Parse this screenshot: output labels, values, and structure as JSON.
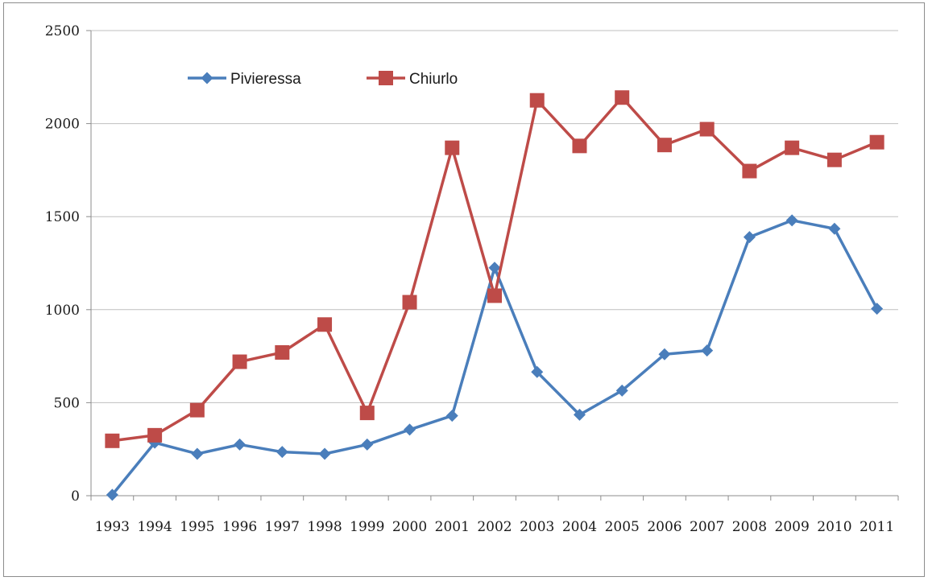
{
  "chart_data": {
    "type": "line",
    "title": "",
    "xlabel": "",
    "ylabel": "",
    "categories": [
      "1993",
      "1994",
      "1995",
      "1996",
      "1997",
      "1998",
      "1999",
      "2000",
      "2001",
      "2002",
      "2003",
      "2004",
      "2005",
      "2006",
      "2007",
      "2008",
      "2009",
      "2010",
      "2011"
    ],
    "ylim": [
      0,
      2500
    ],
    "yticks": [
      "0",
      "500",
      "1000",
      "1500",
      "2000",
      "2500"
    ],
    "grid": "horizontal",
    "legend_position": "top-left",
    "series": [
      {
        "name": "Pivieressa",
        "color": "#4a7ebb",
        "marker": "diamond",
        "values": [
          5,
          285,
          225,
          275,
          235,
          225,
          275,
          355,
          430,
          1225,
          665,
          435,
          565,
          760,
          780,
          1390,
          1480,
          1435,
          1005
        ]
      },
      {
        "name": "Chiurlo",
        "color": "#be4b48",
        "marker": "square",
        "values": [
          295,
          325,
          460,
          720,
          770,
          920,
          445,
          1040,
          1870,
          1075,
          2125,
          1880,
          2140,
          1885,
          1970,
          1745,
          1870,
          1805,
          1900
        ]
      }
    ]
  }
}
